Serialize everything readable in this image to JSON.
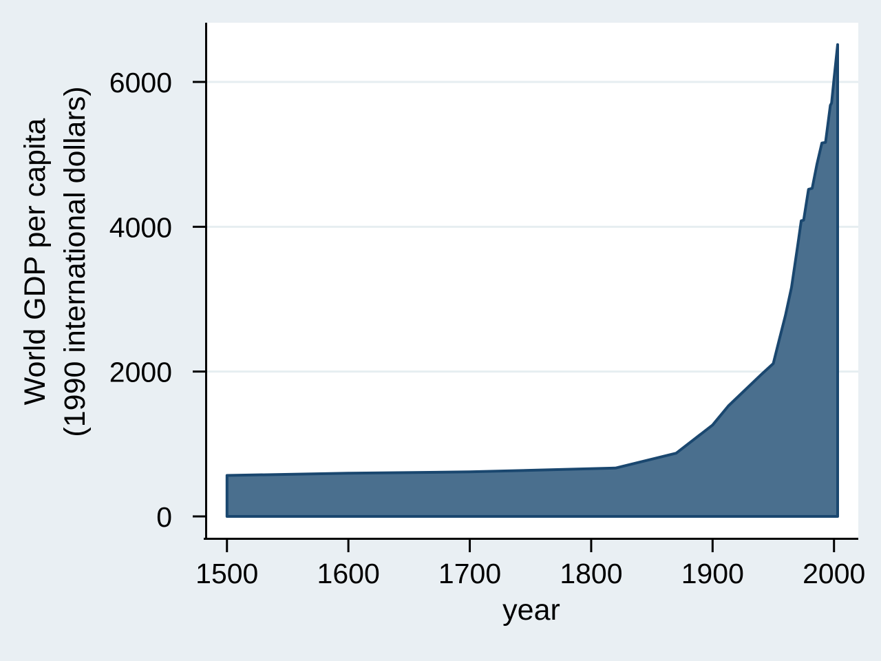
{
  "figure": {
    "background_color": "#e9eff3",
    "plot_background_color": "#ffffff"
  },
  "chart_data": {
    "type": "area",
    "title": "",
    "xlabel": "year",
    "ylabel": "World GDP per capita (1990 international dollars)",
    "ylabel_lines": [
      "World GDP per capita",
      "(1990 international dollars)"
    ],
    "x_ticks": [
      1500,
      1600,
      1700,
      1800,
      1900,
      2000
    ],
    "y_ticks": [
      0,
      2000,
      4000,
      6000
    ],
    "xlim": [
      1482,
      2020
    ],
    "ylim": [
      -295,
      6818
    ],
    "grid": {
      "horizontal": true,
      "vertical": false,
      "color": "#e6eef1",
      "skip_zero": true
    },
    "legend": "none",
    "axis_color": "#000000",
    "text_color": "#000000",
    "series": [
      {
        "name": "World GDP per capita (1990 international dollars)",
        "baseline": 0,
        "fill_color": "#4a6f8e",
        "line_color": "#1a476f",
        "x": [
          1500,
          1600,
          1700,
          1820,
          1870,
          1900,
          1913,
          1940,
          1950,
          1955,
          1960,
          1965,
          1970,
          1973,
          1975,
          1979,
          1982,
          1986,
          1990,
          1993,
          1997,
          1998,
          2000,
          2003
        ],
        "y": [
          566,
          596,
          615,
          667,
          873,
          1262,
          1526,
          1958,
          2111,
          2446,
          2777,
          3164,
          3729,
          4083,
          4091,
          4518,
          4531,
          4867,
          5157,
          5165,
          5677,
          5708,
          6038,
          6516
        ]
      }
    ]
  }
}
